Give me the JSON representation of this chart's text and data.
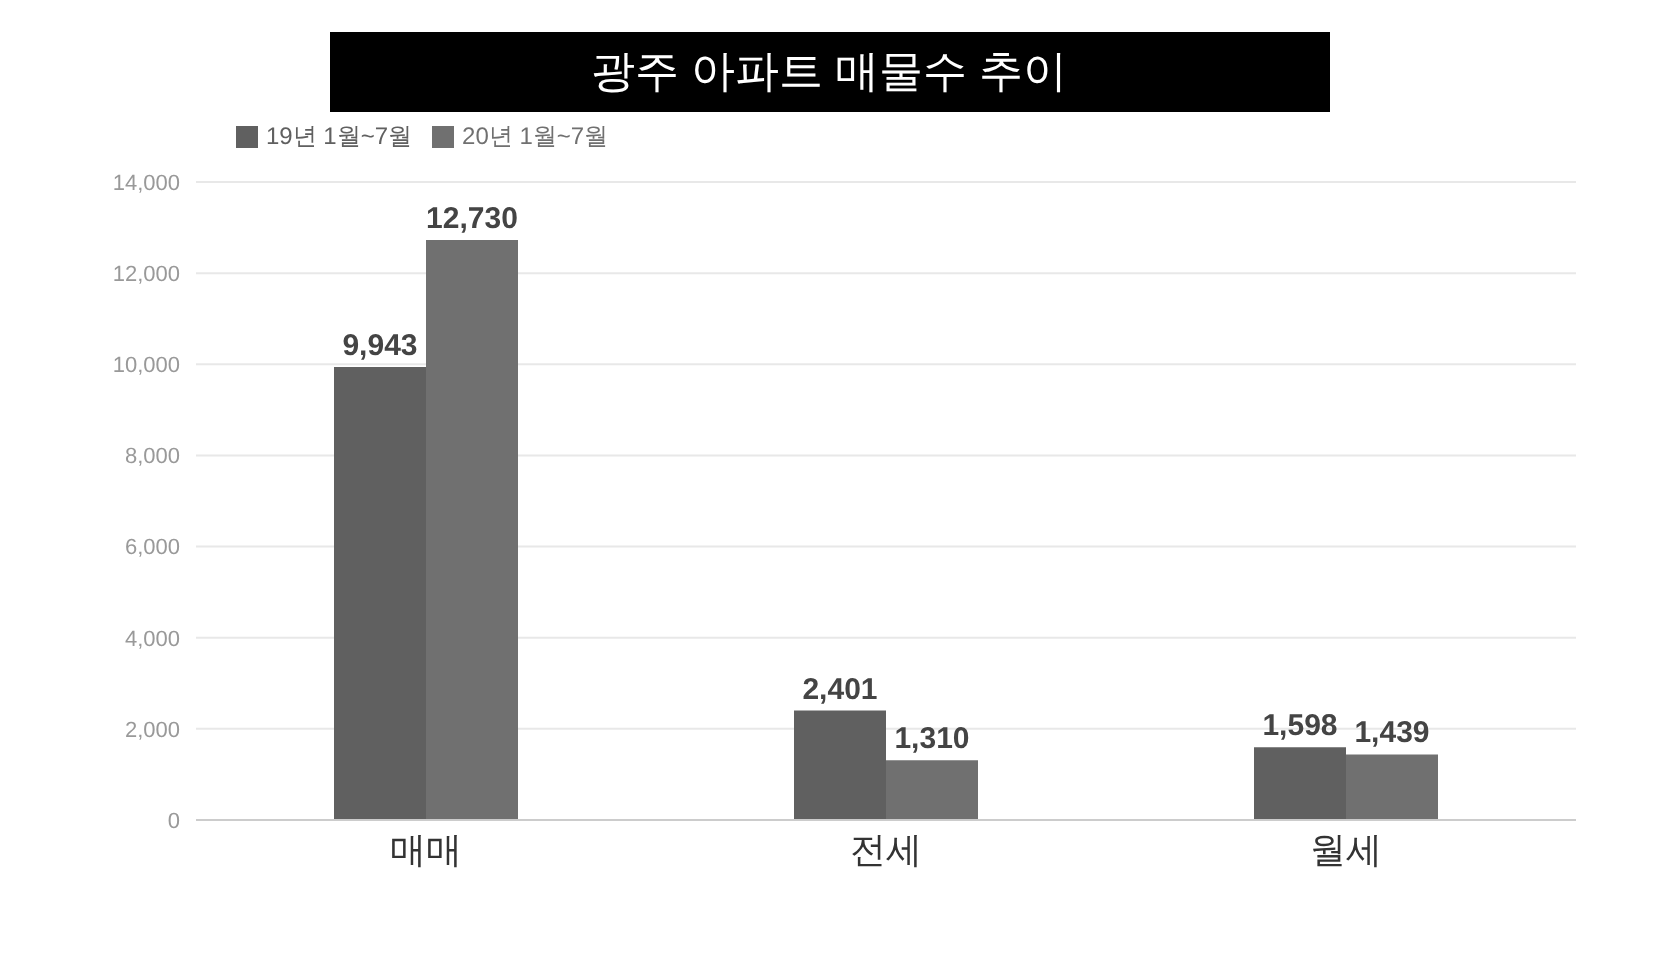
{
  "chart_data": {
    "type": "bar",
    "title": "광주 아파트 매물수 추이",
    "categories": [
      "매매",
      "전세",
      "월세"
    ],
    "series": [
      {
        "name": "19년 1월~7월",
        "color": "#606060",
        "values": [
          9943,
          2401,
          1598
        ],
        "value_labels": [
          "9,943",
          "2,401",
          "1,598"
        ]
      },
      {
        "name": "20년 1월~7월",
        "color": "#707070",
        "values": [
          12730,
          1310,
          1439
        ],
        "value_labels": [
          "12,730",
          "1,310",
          "1,439"
        ]
      }
    ],
    "ylim": [
      0,
      14000
    ],
    "yticks": [
      {
        "value": 0,
        "label": "0"
      },
      {
        "value": 2000,
        "label": "2,000"
      },
      {
        "value": 4000,
        "label": "4,000"
      },
      {
        "value": 6000,
        "label": "6,000"
      },
      {
        "value": 8000,
        "label": "8,000"
      },
      {
        "value": 10000,
        "label": "10,000"
      },
      {
        "value": 12000,
        "label": "12,000"
      },
      {
        "value": 14000,
        "label": "14,000"
      }
    ],
    "grid": "y",
    "legend": "top left"
  }
}
